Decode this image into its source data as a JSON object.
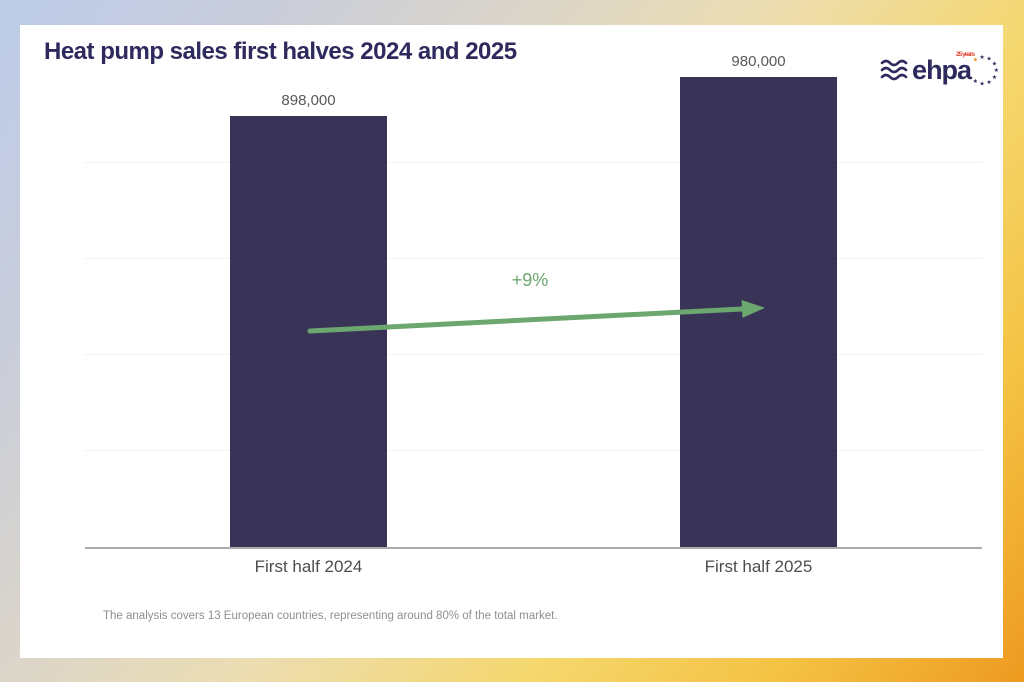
{
  "chart_data": {
    "type": "bar",
    "title": "Heat pump sales first halves 2024 and 2025",
    "categories": [
      "First half 2024",
      "First half 2025"
    ],
    "values": [
      898000,
      980000
    ],
    "value_labels": [
      "898,000",
      "980,000"
    ],
    "ylim": [
      0,
      1000000
    ],
    "gridline_interval": 200000,
    "grid": "horizontal-faint",
    "legend": "none",
    "bar_color": "#393357",
    "annotation": {
      "text": "+9%",
      "color": "#6ba76f"
    }
  },
  "logo": {
    "name": "ehpa",
    "badge": "25 years"
  },
  "footnote": "The analysis covers 13 European countries, representing around 80% of the total market.",
  "theme": {
    "title_color": "#2e2a5e",
    "card_bg": "#ffffff",
    "frame_gradient": [
      "#bdcce9",
      "#dcd6c9",
      "#f5d76e",
      "#ee9a20"
    ],
    "value_label_color": "#595959",
    "axis_color": "#ababab",
    "footnote_color": "#8f8f8f"
  }
}
